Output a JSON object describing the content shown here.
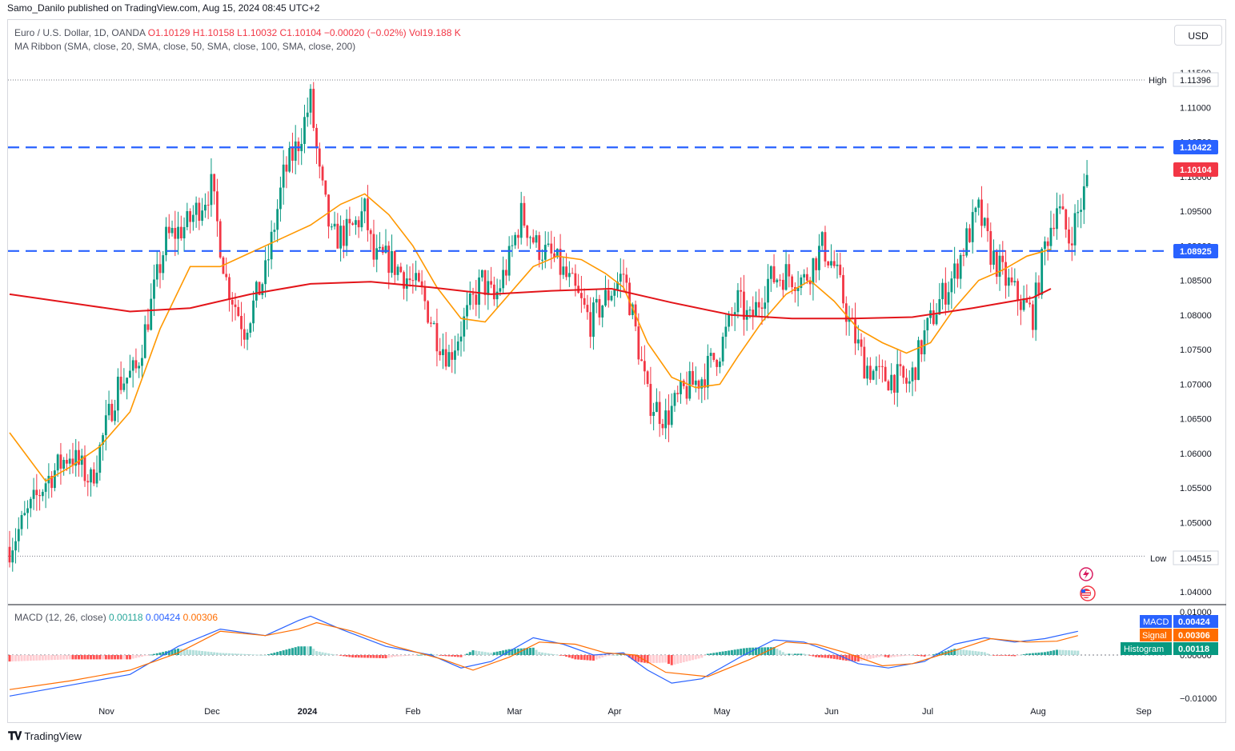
{
  "header": {
    "publisher_text": "Samo_Danilo published on TradingView.com, Aug 15, 2024 08:45 UTC+2"
  },
  "currency_button": "USD",
  "legend": {
    "symbol": "Euro / U.S. Dollar, 1D, OANDA",
    "ohlc": "O1.10129  H1.10158  L1.10032  C1.10104  −0.00020 (−0.02%)  Vol19.188 K",
    "ribbon": "MA Ribbon (SMA, close, 20, SMA, close, 50, SMA, close, 100, SMA, close, 200)"
  },
  "macd_legend": {
    "title": "MACD (12, 26, close)",
    "histogram_value": "0.00118",
    "macd_value": "0.00424",
    "signal_value": "0.00306"
  },
  "price_tags": {
    "high_label": "High",
    "high_value": "1.11396",
    "resistance_value": "1.10422",
    "last_value": "1.10104",
    "support_value": "1.08925",
    "low_label": "Low",
    "low_value": "1.04515"
  },
  "macd_tags": {
    "macd_label": "MACD",
    "macd_value": "0.00424",
    "signal_label": "Signal",
    "signal_value": "0.00306",
    "histogram_label": "Histogram",
    "histogram_value": "0.00118"
  },
  "footer": {
    "brand": "TradingView"
  },
  "colors": {
    "up": "#089981",
    "down": "#f23645",
    "ma20": "#ff9800",
    "ma200": "#e3151a",
    "level_line": "#2962ff",
    "macd_line": "#2962ff",
    "signal_line": "#ff6d00",
    "hist_up_strong": "#26a69a",
    "hist_up_weak": "#b2dfdb",
    "hist_down_strong": "#ff5252",
    "hist_down_weak": "#ffcdd2"
  },
  "chart_data": [
    {
      "type": "candlestick",
      "symbol": "EURUSD",
      "timeframe": "1D",
      "ylim": [
        1.0375,
        1.1175
      ],
      "y_ticks": [
        "1.11500",
        "1.11000",
        "1.10500",
        "1.10000",
        "1.09500",
        "1.09000",
        "1.08500",
        "1.08000",
        "1.07500",
        "1.07000",
        "1.06500",
        "1.06000",
        "1.05500",
        "1.05000",
        "1.04000"
      ],
      "x_ticks": [
        "Nov",
        "Dec",
        "2024",
        "Feb",
        "Mar",
        "Apr",
        "May",
        "Jun",
        "Jul",
        "Aug",
        "Sep"
      ],
      "horizontal_levels": [
        1.10422,
        1.08925
      ],
      "high": 1.11396,
      "low": 1.04515,
      "last": 1.10104,
      "anchors": [
        [
          0,
          1.0465
        ],
        [
          12,
          1.056
        ],
        [
          20,
          1.06
        ],
        [
          27,
          1.056
        ],
        [
          36,
          1.07
        ],
        [
          42,
          1.072
        ],
        [
          52,
          1.091
        ],
        [
          59,
          1.093
        ],
        [
          67,
          1.0985
        ],
        [
          72,
          1.085
        ],
        [
          78,
          1.078
        ],
        [
          85,
          1.086
        ],
        [
          91,
          1.1
        ],
        [
          96,
          1.105
        ],
        [
          100,
          1.111
        ],
        [
          103,
          1.1
        ],
        [
          107,
          1.091
        ],
        [
          113,
          1.092
        ],
        [
          118,
          1.095
        ],
        [
          121,
          1.088
        ],
        [
          126,
          1.088
        ],
        [
          133,
          1.085
        ],
        [
          137,
          1.083
        ],
        [
          142,
          1.077
        ],
        [
          146,
          1.074
        ],
        [
          151,
          1.079
        ],
        [
          157,
          1.085
        ],
        [
          161,
          1.082
        ],
        [
          166,
          1.088
        ],
        [
          170,
          1.0945
        ],
        [
          175,
          1.09
        ],
        [
          181,
          1.088
        ],
        [
          187,
          1.084
        ],
        [
          193,
          1.079
        ],
        [
          199,
          1.083
        ],
        [
          204,
          1.086
        ],
        [
          207,
          1.08
        ],
        [
          212,
          1.068
        ],
        [
          218,
          1.065
        ],
        [
          224,
          1.069
        ],
        [
          230,
          1.071
        ],
        [
          236,
          1.075
        ],
        [
          242,
          1.082
        ],
        [
          246,
          1.079
        ],
        [
          252,
          1.085
        ],
        [
          258,
          1.086
        ],
        [
          264,
          1.085
        ],
        [
          270,
          1.09
        ],
        [
          274,
          1.087
        ],
        [
          279,
          1.079
        ],
        [
          284,
          1.073
        ],
        [
          289,
          1.071
        ],
        [
          294,
          1.071
        ],
        [
          299,
          1.07
        ],
        [
          304,
          1.077
        ],
        [
          309,
          1.082
        ],
        [
          314,
          1.086
        ],
        [
          318,
          1.091
        ],
        [
          322,
          1.095
        ],
        [
          326,
          1.089
        ],
        [
          331,
          1.085
        ],
        [
          336,
          1.082
        ],
        [
          340,
          1.08
        ],
        [
          344,
          1.09
        ],
        [
          348,
          1.096
        ],
        [
          352,
          1.091
        ],
        [
          356,
          1.096
        ],
        [
          359,
          1.101
        ]
      ],
      "series": [
        {
          "name": "SMA 20",
          "values": [
            [
              0,
              1.063
            ],
            [
              12,
              1.056
            ],
            [
              20,
              1.058
            ],
            [
              30,
              1.061
            ],
            [
              40,
              1.066
            ],
            [
              50,
              1.078
            ],
            [
              60,
              1.087
            ],
            [
              70,
              1.087
            ],
            [
              80,
              1.089
            ],
            [
              90,
              1.091
            ],
            [
              100,
              1.093
            ],
            [
              110,
              1.096
            ],
            [
              118,
              1.0975
            ],
            [
              126,
              1.0945
            ],
            [
              134,
              1.09
            ],
            [
              142,
              1.084
            ],
            [
              150,
              1.0795
            ],
            [
              158,
              1.079
            ],
            [
              166,
              1.083
            ],
            [
              174,
              1.087
            ],
            [
              182,
              1.0885
            ],
            [
              190,
              1.088
            ],
            [
              198,
              1.086
            ],
            [
              204,
              1.084
            ],
            [
              212,
              1.076
            ],
            [
              220,
              1.071
            ],
            [
              228,
              1.0695
            ],
            [
              236,
              1.07
            ],
            [
              242,
              1.074
            ],
            [
              250,
              1.079
            ],
            [
              258,
              1.083
            ],
            [
              266,
              1.085
            ],
            [
              274,
              1.082
            ],
            [
              282,
              1.078
            ],
            [
              290,
              1.076
            ],
            [
              298,
              1.0745
            ],
            [
              306,
              1.076
            ],
            [
              314,
              1.081
            ],
            [
              322,
              1.085
            ],
            [
              330,
              1.0865
            ],
            [
              338,
              1.0885
            ],
            [
              346,
              1.0895
            ]
          ]
        },
        {
          "name": "SMA 200",
          "values": [
            [
              0,
              1.083
            ],
            [
              40,
              1.0805
            ],
            [
              60,
              1.081
            ],
            [
              80,
              1.083
            ],
            [
              100,
              1.0845
            ],
            [
              120,
              1.0848
            ],
            [
              140,
              1.084
            ],
            [
              160,
              1.083
            ],
            [
              180,
              1.0835
            ],
            [
              200,
              1.0838
            ],
            [
              220,
              1.0818
            ],
            [
              240,
              1.08
            ],
            [
              260,
              1.0795
            ],
            [
              280,
              1.0795
            ],
            [
              300,
              1.0797
            ],
            [
              320,
              1.081
            ],
            [
              340,
              1.0825
            ],
            [
              346,
              1.0838
            ]
          ]
        }
      ]
    },
    {
      "type": "macd",
      "title": "MACD (12, 26, close)",
      "ylim": [
        -0.0115,
        0.011
      ],
      "y_ticks": [
        "0.01000",
        "0.00000",
        "-0.01000"
      ],
      "series": [
        {
          "name": "MACD",
          "values": [
            [
              0,
              -0.0095
            ],
            [
              20,
              -0.007
            ],
            [
              40,
              -0.0045
            ],
            [
              56,
              0.002
            ],
            [
              70,
              0.006
            ],
            [
              85,
              0.0045
            ],
            [
              96,
              0.008
            ],
            [
              100,
              0.009
            ],
            [
              110,
              0.006
            ],
            [
              125,
              0.002
            ],
            [
              140,
              0.0
            ],
            [
              150,
              -0.003
            ],
            [
              160,
              -0.0015
            ],
            [
              174,
              0.004
            ],
            [
              184,
              0.0025
            ],
            [
              194,
              0.0
            ],
            [
              204,
              0.0005
            ],
            [
              212,
              -0.0035
            ],
            [
              220,
              -0.0065
            ],
            [
              230,
              -0.0055
            ],
            [
              244,
              0.0
            ],
            [
              254,
              0.0035
            ],
            [
              264,
              0.003
            ],
            [
              272,
              0.001
            ],
            [
              282,
              -0.002
            ],
            [
              292,
              -0.003
            ],
            [
              304,
              -0.0015
            ],
            [
              314,
              0.0025
            ],
            [
              324,
              0.004
            ],
            [
              334,
              0.003
            ],
            [
              344,
              0.0038
            ],
            [
              355,
              0.0055
            ]
          ]
        },
        {
          "name": "Signal",
          "values": [
            [
              0,
              -0.008
            ],
            [
              20,
              -0.006
            ],
            [
              40,
              -0.0035
            ],
            [
              56,
              0.0005
            ],
            [
              70,
              0.0055
            ],
            [
              85,
              0.0045
            ],
            [
              96,
              0.006
            ],
            [
              102,
              0.0075
            ],
            [
              114,
              0.0055
            ],
            [
              128,
              0.002
            ],
            [
              144,
              -0.001
            ],
            [
              154,
              -0.0035
            ],
            [
              166,
              -0.0005
            ],
            [
              176,
              0.003
            ],
            [
              188,
              0.0025
            ],
            [
              198,
              0.0005
            ],
            [
              208,
              0.0
            ],
            [
              218,
              -0.004
            ],
            [
              232,
              -0.005
            ],
            [
              246,
              -0.001
            ],
            [
              258,
              0.003
            ],
            [
              268,
              0.0025
            ],
            [
              278,
              0.0005
            ],
            [
              290,
              -0.0025
            ],
            [
              300,
              -0.002
            ],
            [
              316,
              0.0015
            ],
            [
              326,
              0.0038
            ],
            [
              338,
              0.003
            ],
            [
              348,
              0.0032
            ],
            [
              355,
              0.0045
            ]
          ]
        }
      ],
      "histogram_last": 0.00118,
      "macd_last": 0.00424,
      "signal_last": 0.00306
    }
  ]
}
